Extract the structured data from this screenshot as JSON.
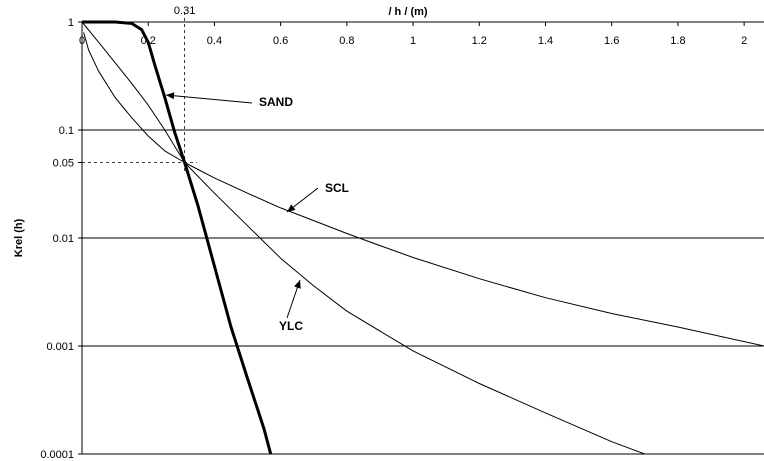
{
  "chart_data": {
    "type": "line",
    "xlabel": "/ h /  (m)",
    "ylabel": "Krel (h)",
    "x_axis_position": "top",
    "y_scale": "log",
    "xlim": [
      0,
      2.06
    ],
    "ylim": [
      0.0001,
      1
    ],
    "x_ticks": [
      "0",
      "0.2",
      "0.4",
      "0.6",
      "0.8",
      "1",
      "1.2",
      "1.4",
      "1.6",
      "1.8",
      "2"
    ],
    "y_ticks": [
      "1",
      "0.1",
      "0.05",
      "0.01",
      "0.001",
      "0.0001"
    ],
    "grid": "horizontal",
    "reference_point": {
      "x": 0.31,
      "y": 0.05,
      "x_label": "0.31",
      "y_label": "0.05"
    },
    "series": [
      {
        "name": "SAND",
        "stroke": "bold",
        "points": [
          [
            0,
            1
          ],
          [
            0.1,
            1
          ],
          [
            0.15,
            0.97
          ],
          [
            0.18,
            0.85
          ],
          [
            0.2,
            0.65
          ],
          [
            0.22,
            0.4
          ],
          [
            0.25,
            0.2
          ],
          [
            0.28,
            0.095
          ],
          [
            0.31,
            0.05
          ],
          [
            0.35,
            0.02
          ],
          [
            0.4,
            0.0055
          ],
          [
            0.45,
            0.0015
          ],
          [
            0.5,
            0.0005
          ],
          [
            0.55,
            0.00017
          ],
          [
            0.57,
            0.0001
          ]
        ]
      },
      {
        "name": "SCL",
        "stroke": "thin",
        "points": [
          [
            0.005,
            0.8
          ],
          [
            0.02,
            0.55
          ],
          [
            0.05,
            0.35
          ],
          [
            0.1,
            0.2
          ],
          [
            0.15,
            0.13
          ],
          [
            0.2,
            0.088
          ],
          [
            0.25,
            0.064
          ],
          [
            0.31,
            0.05
          ],
          [
            0.4,
            0.036
          ],
          [
            0.5,
            0.026
          ],
          [
            0.6,
            0.019
          ],
          [
            0.7,
            0.0145
          ],
          [
            0.8,
            0.011
          ],
          [
            0.9,
            0.0085
          ],
          [
            1.0,
            0.0066
          ],
          [
            1.2,
            0.0042
          ],
          [
            1.4,
            0.0028
          ],
          [
            1.6,
            0.002
          ],
          [
            1.8,
            0.0015
          ],
          [
            2.06,
            0.001
          ]
        ]
      },
      {
        "name": "YLC",
        "stroke": "thin",
        "points": [
          [
            0,
            1
          ],
          [
            0.05,
            0.65
          ],
          [
            0.1,
            0.42
          ],
          [
            0.15,
            0.27
          ],
          [
            0.2,
            0.17
          ],
          [
            0.25,
            0.1
          ],
          [
            0.31,
            0.05
          ],
          [
            0.4,
            0.026
          ],
          [
            0.5,
            0.013
          ],
          [
            0.6,
            0.0065
          ],
          [
            0.7,
            0.0036
          ],
          [
            0.8,
            0.0021
          ],
          [
            1.0,
            0.0009
          ],
          [
            1.2,
            0.00045
          ],
          [
            1.4,
            0.00024
          ],
          [
            1.6,
            0.00013
          ],
          [
            1.7,
            0.0001
          ]
        ]
      }
    ],
    "annotations": [
      "SAND",
      "SCL",
      "YLC"
    ]
  }
}
